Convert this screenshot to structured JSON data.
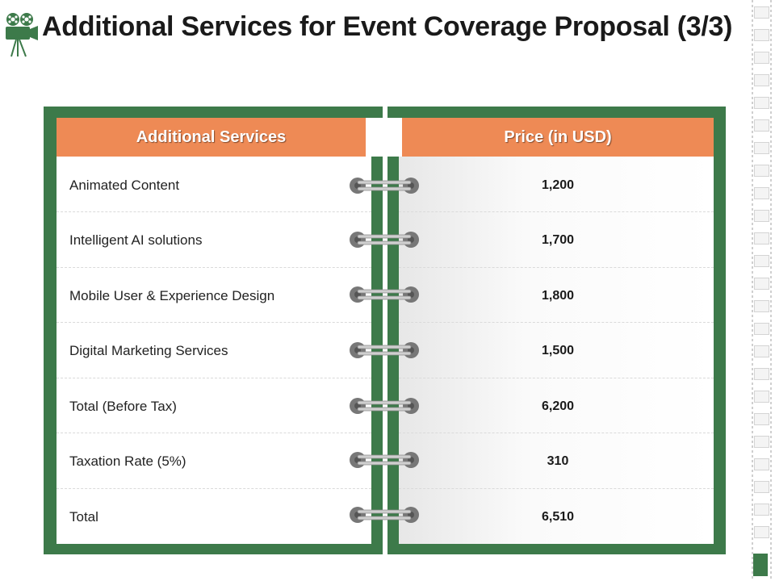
{
  "title": "Additional Services for Event Coverage Proposal (3/3)",
  "icons": {
    "logo": "film-camera-icon"
  },
  "colors": {
    "accent": "#ee8a55",
    "frame": "#3d7a4a",
    "ring": "#777777"
  },
  "table": {
    "header_service": "Additional Services",
    "header_price": "Price (in USD)",
    "rows": [
      {
        "service": "Animated Content",
        "price": "1,200"
      },
      {
        "service": "Intelligent AI solutions",
        "price": "1,700"
      },
      {
        "service": "Mobile User & Experience Design",
        "price": "1,800"
      },
      {
        "service": "Digital Marketing Services",
        "price": "1,500"
      },
      {
        "service": "Total (Before Tax)",
        "price": "6,200"
      },
      {
        "service": "Taxation Rate (5%)",
        "price": "310"
      },
      {
        "service": "Total",
        "price": "6,510"
      }
    ]
  }
}
